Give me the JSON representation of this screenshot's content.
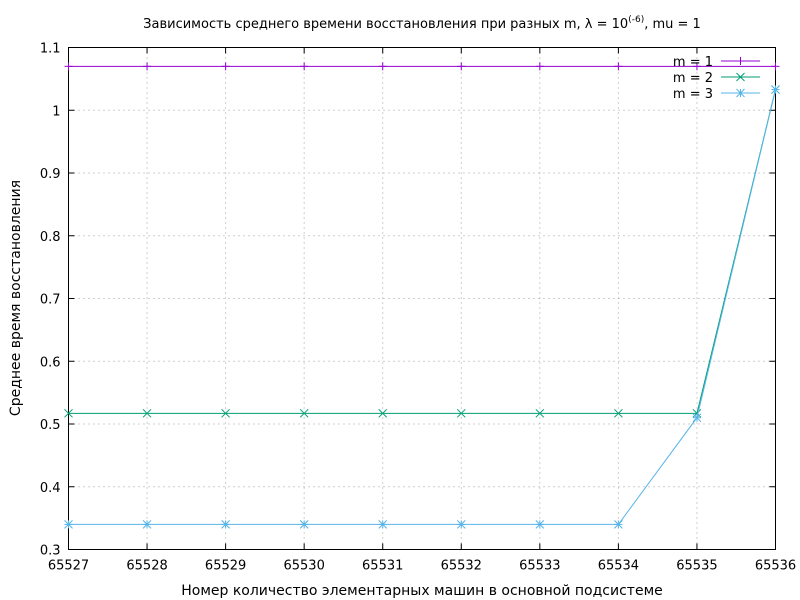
{
  "chart_data": {
    "type": "line",
    "title_main": "Зависимость среднего времени восстановления при разных m, λ = 10",
    "title_sup": "(-6)",
    "title_tail": ", mu = 1",
    "xlabel": "Номер количество элементарных машин в основной подсистеме",
    "ylabel": "Среднее время восстановления",
    "x": [
      65527,
      65528,
      65529,
      65530,
      65531,
      65532,
      65533,
      65534,
      65535,
      65536
    ],
    "xlim": [
      65527,
      65536
    ],
    "ylim": [
      0.3,
      1.1
    ],
    "x_ticks": [
      "65527",
      "65528",
      "65529",
      "65530",
      "65531",
      "65532",
      "65533",
      "65534",
      "65535",
      "65536"
    ],
    "y_ticks": [
      "0.3",
      "0.4",
      "0.5",
      "0.6",
      "0.7",
      "0.8",
      "0.9",
      "1",
      "1.1"
    ],
    "grid": true,
    "legend_position": "top-right",
    "series": [
      {
        "name": "m = 1",
        "color": "#9400d3",
        "marker": "plus",
        "values": [
          1.07,
          1.07,
          1.07,
          1.07,
          1.07,
          1.07,
          1.07,
          1.07,
          1.07,
          1.07
        ]
      },
      {
        "name": "m = 2",
        "color": "#009e73",
        "marker": "cross",
        "values": [
          0.517,
          0.517,
          0.517,
          0.517,
          0.517,
          0.517,
          0.517,
          0.517,
          0.517,
          1.033
        ]
      },
      {
        "name": "m = 3",
        "color": "#56b4e9",
        "marker": "star",
        "values": [
          0.34,
          0.34,
          0.34,
          0.34,
          0.34,
          0.34,
          0.34,
          0.34,
          0.51,
          1.033
        ]
      }
    ]
  }
}
